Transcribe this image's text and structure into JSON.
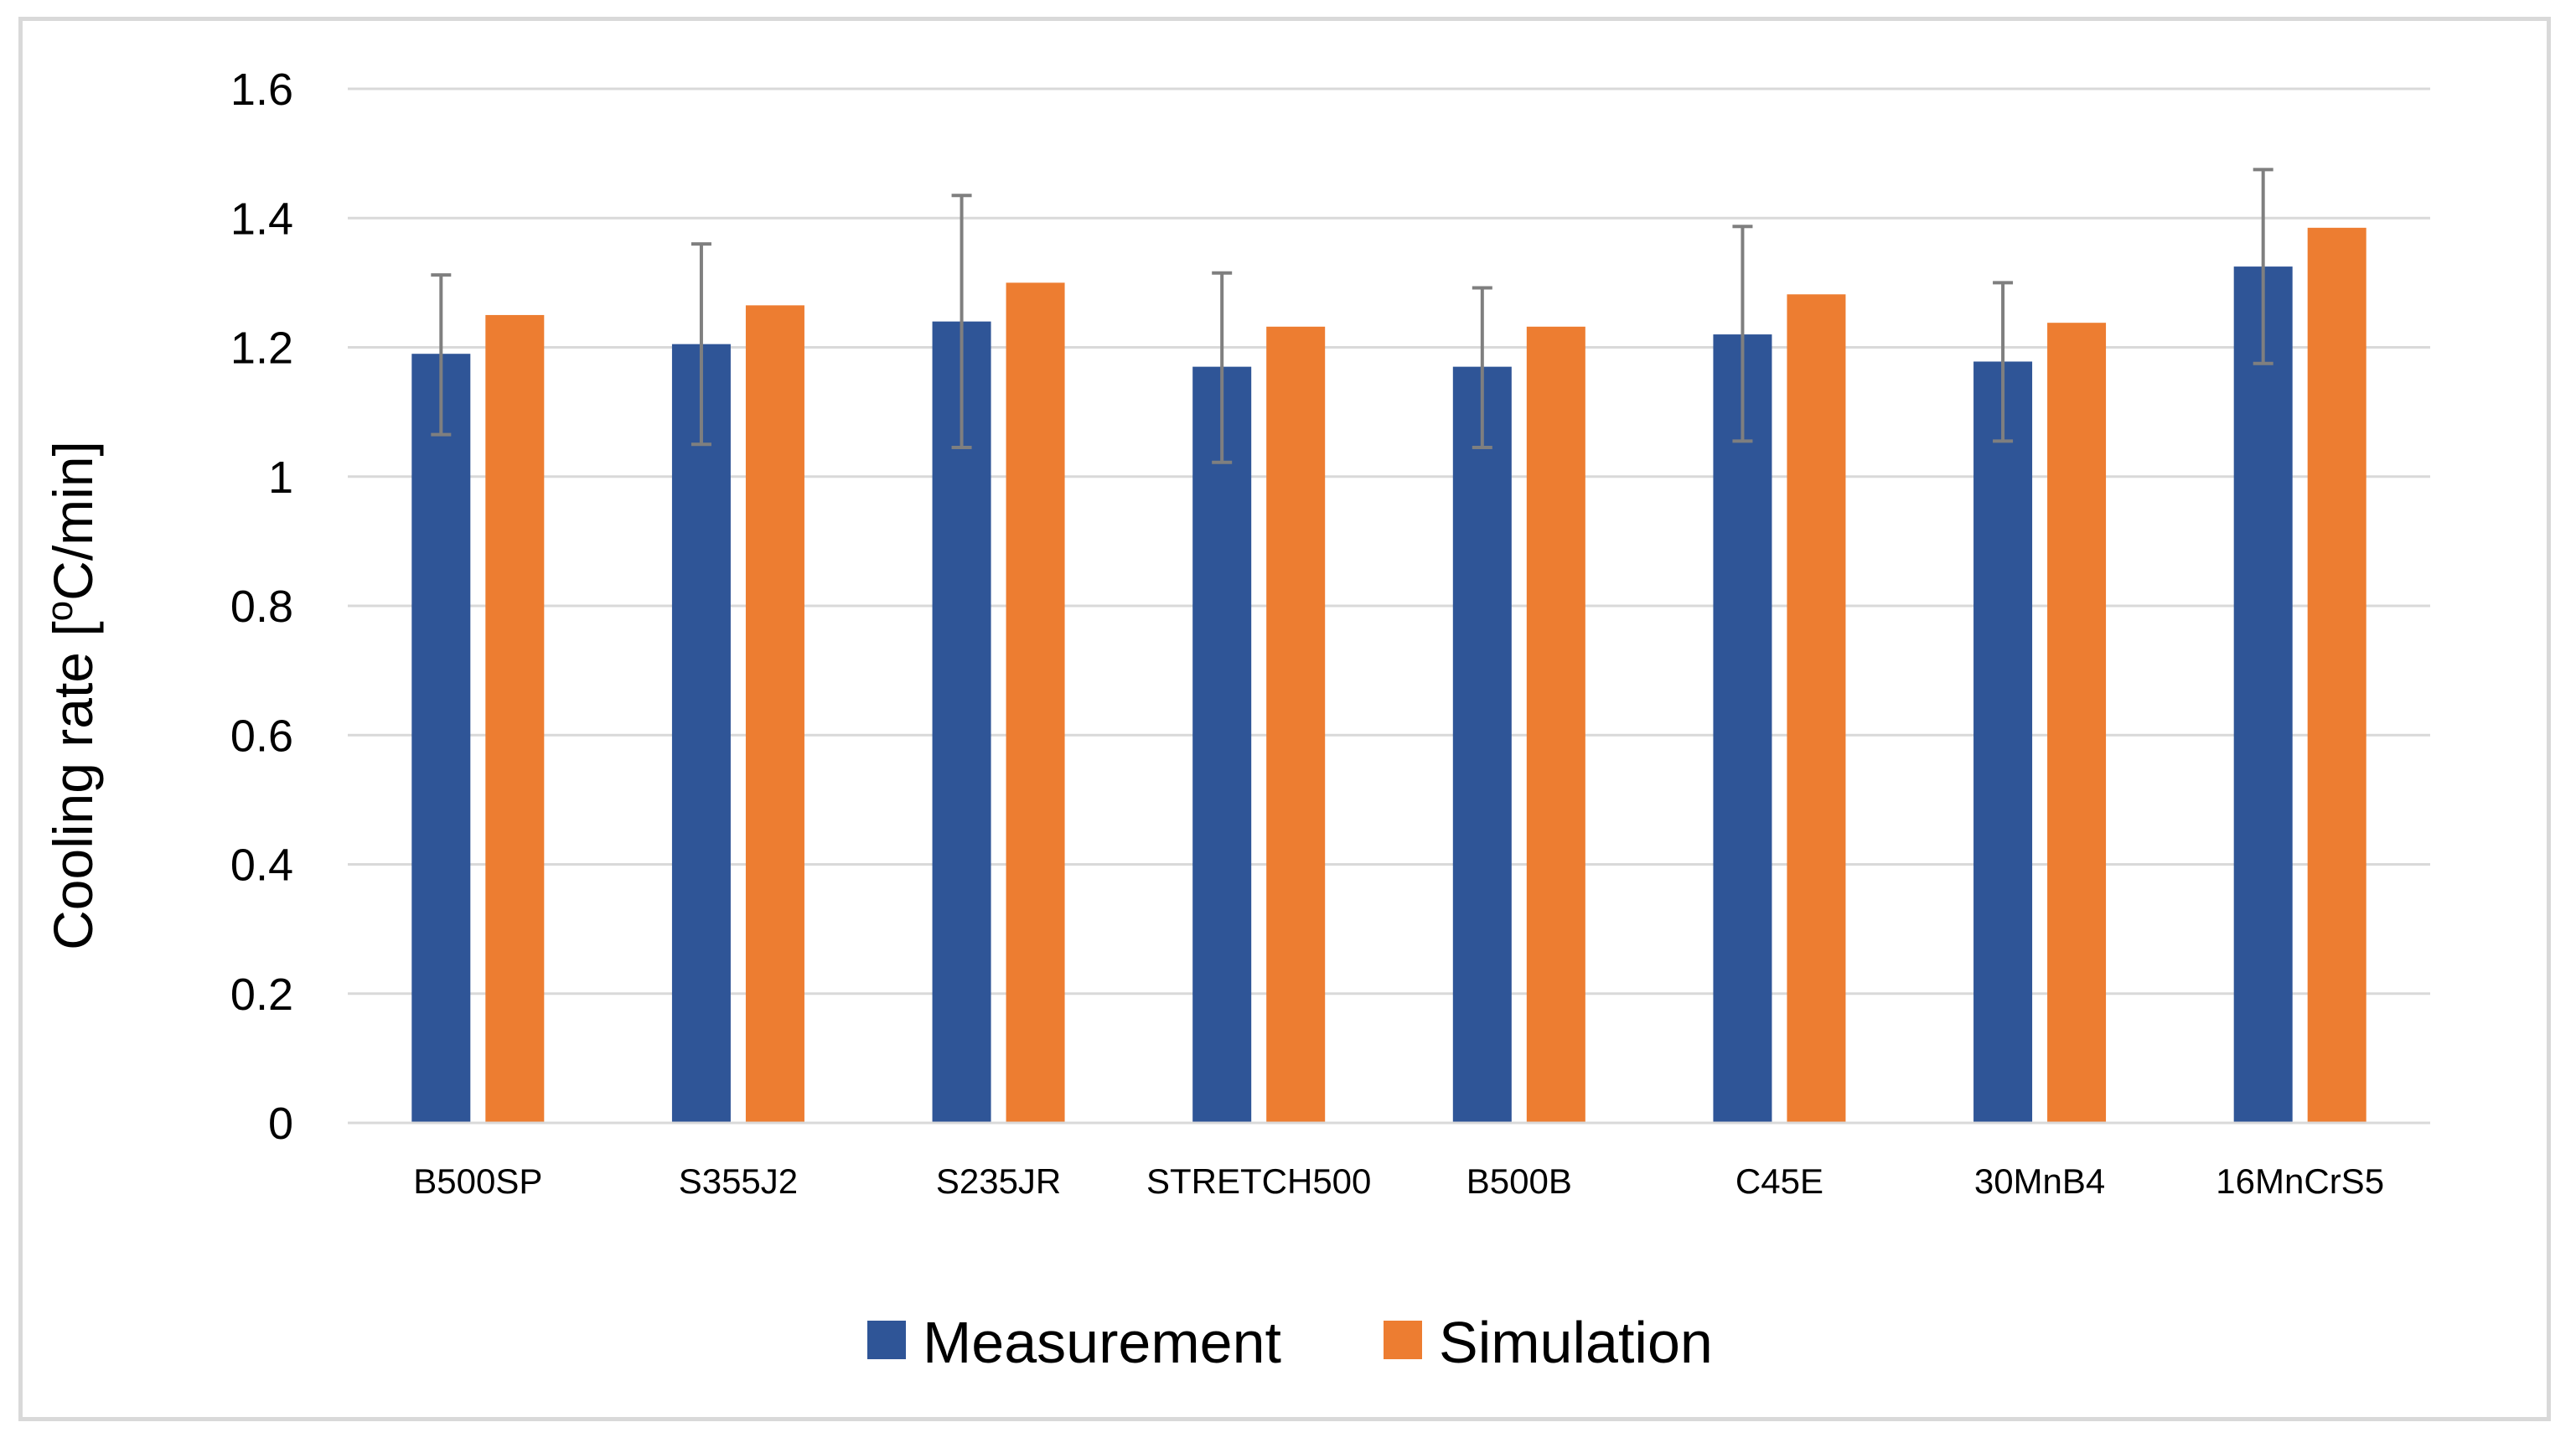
{
  "chart_data": {
    "type": "bar",
    "title": "",
    "xlabel": "",
    "ylabel": "Cooling rate [",
    "ylabel_superscript": "o",
    "ylabel_suffix": "C/min]",
    "ylim": [
      0,
      1.6
    ],
    "yticks": [
      0,
      0.2,
      0.4,
      0.6,
      0.8,
      1,
      1.2,
      1.4,
      1.6
    ],
    "ytick_labels": [
      "0",
      "0.2",
      "0.4",
      "0.6",
      "0.8",
      "1",
      "1.2",
      "1.4",
      "1.6"
    ],
    "grid": true,
    "legend_position": "bottom",
    "categories": [
      "B500SP",
      "S355J2",
      "S235JR",
      "STRETCH500",
      "B500B",
      "C45E",
      "30MnB4",
      "16MnCrS5"
    ],
    "series": [
      {
        "name": "Measurement",
        "color": "#2f5597",
        "values": [
          1.19,
          1.205,
          1.24,
          1.17,
          1.17,
          1.22,
          1.178,
          1.325
        ],
        "error_low": [
          1.065,
          1.05,
          1.045,
          1.022,
          1.045,
          1.055,
          1.055,
          1.175
        ],
        "error_high": [
          1.312,
          1.36,
          1.435,
          1.315,
          1.292,
          1.387,
          1.3,
          1.475
        ]
      },
      {
        "name": "Simulation",
        "color": "#ed7d31",
        "values": [
          1.25,
          1.265,
          1.3,
          1.232,
          1.232,
          1.282,
          1.238,
          1.385
        ]
      }
    ],
    "error_bar_color": "#7f7f7f",
    "grid_color": "#d9d9d9"
  }
}
